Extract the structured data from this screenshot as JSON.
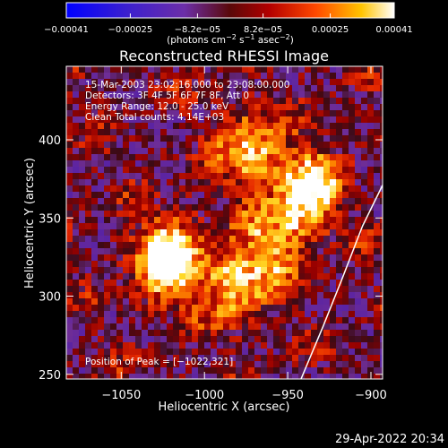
{
  "chart_data": {
    "type": "heatmap",
    "title": "Reconstructed RHESSI Image",
    "xlabel": "Heliocentric X (arcsec)",
    "ylabel": "Heliocentric Y (arcsec)",
    "xlim": [
      -1083,
      -893
    ],
    "ylim": [
      247,
      447
    ],
    "xticks": [
      -1050,
      -1000,
      -950,
      -900
    ],
    "yticks": [
      250,
      300,
      350,
      400
    ],
    "xtick_labels": [
      "−1050",
      "−1000",
      "−950",
      "−900"
    ],
    "ytick_labels": [
      "250",
      "300",
      "350",
      "400"
    ],
    "colorbar": {
      "range": [
        -0.00041,
        0.00041
      ],
      "tick_values": [
        -0.00041,
        -0.00025,
        -8.2e-05,
        8.2e-05,
        0.00025,
        0.00041
      ],
      "tick_labels": [
        "−0.00041",
        "−0.00025",
        "−8.2e−05",
        "8.2e−05",
        "0.00025",
        "0.00041"
      ],
      "units_label": "(photons cm",
      "units_exp1": "−2",
      "units_mid": " s",
      "units_exp2": "−1",
      "units_mid2": " asec",
      "units_exp3": "−2",
      "units_end": ")"
    },
    "info_lines": [
      "15-Mar-2003 23:02:16.000 to 23:08:00.000",
      "Detectors: 3F 4F 5F 6F 7F 8F, Att 0",
      "Energy Range: 12.0 - 25.0 keV",
      "Clean    Total counts: 4.14E+03"
    ],
    "peak_label": "Position of Peak = [−1022,321]",
    "peak_position": [
      -1022,
      321
    ],
    "sources": [
      {
        "x": -1022,
        "y": 323,
        "intensity": 1.0
      },
      {
        "x": -938,
        "y": 368,
        "intensity": 0.85
      },
      {
        "x": -972,
        "y": 393,
        "intensity": 0.6
      },
      {
        "x": -982,
        "y": 308,
        "intensity": 0.6
      },
      {
        "x": -958,
        "y": 333,
        "intensity": 0.5
      }
    ],
    "limb_curve": [
      [
        -893,
        371
      ],
      [
        -905,
        345
      ],
      [
        -917,
        312
      ],
      [
        -929,
        280
      ],
      [
        -942,
        247
      ]
    ],
    "colormap": "RHESSI blue-purple-red-yellow-white"
  },
  "timestamp": "29-Apr-2022 20:34"
}
